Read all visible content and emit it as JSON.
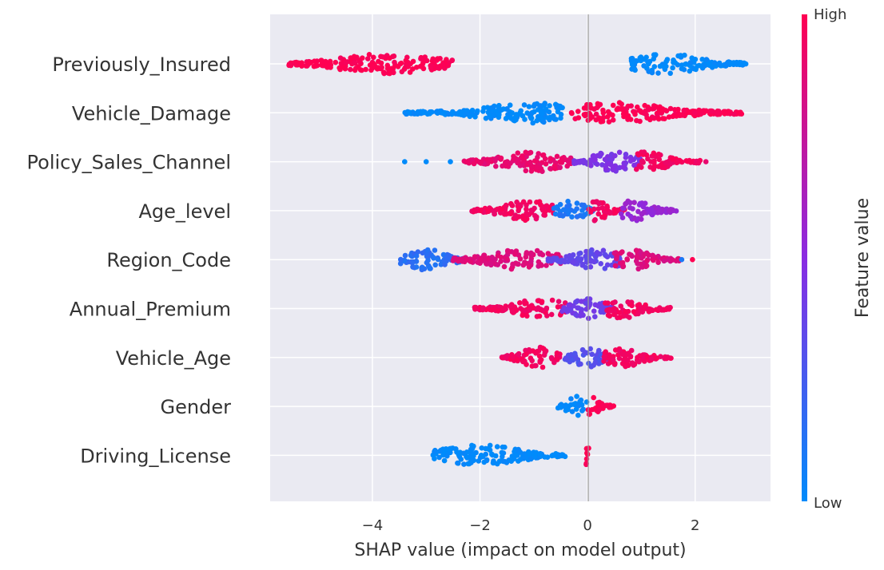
{
  "chart_data": {
    "type": "scatter",
    "subtype": "beeswarm",
    "xlabel": "SHAP value (impact on model output)",
    "xlim": [
      -5.9,
      3.4
    ],
    "xticks": [
      -4,
      -2,
      0,
      2
    ],
    "xtick_labels": [
      "−4",
      "−2",
      "0",
      "2"
    ],
    "grid": true,
    "colorbar": {
      "label": "Feature value",
      "high_label": "High",
      "low_label": "Low",
      "low_color": "#008bfb",
      "mid_color": "#8a2be2",
      "high_color": "#ff0052"
    },
    "background": "#eaeaf2",
    "features": [
      {
        "name": "Previously_Insured",
        "segments": [
          {
            "from": -5.55,
            "to": -2.5,
            "value": 1.0,
            "peak": -3.7
          },
          {
            "from": 0.8,
            "to": 2.95,
            "value": 0.0,
            "peak": 1.45
          }
        ]
      },
      {
        "name": "Vehicle_Damage",
        "segments": [
          {
            "from": -3.4,
            "to": -0.45,
            "value": 0.0,
            "peak": -1.0
          },
          {
            "from": -0.3,
            "to": 2.9,
            "value": 1.0,
            "peak": 0.55
          }
        ]
      },
      {
        "name": "Policy_Sales_Channel",
        "segments": [
          {
            "from": -2.3,
            "to": -0.3,
            "value": 0.9,
            "peak": -1.0
          },
          {
            "from": -0.3,
            "to": 1.0,
            "value": 0.45,
            "peak": 0.45
          },
          {
            "from": 0.9,
            "to": 2.1,
            "value": 0.95,
            "peak": 1.1
          }
        ],
        "outliers": [
          {
            "x": -3.4,
            "value": 0.0
          },
          {
            "x": -3.0,
            "value": 0.0
          },
          {
            "x": -2.55,
            "value": 0.0
          },
          {
            "x": 2.2,
            "value": 0.9
          }
        ]
      },
      {
        "name": "Age_level",
        "segments": [
          {
            "from": -2.15,
            "to": -0.6,
            "value": 0.95,
            "peak": -1.1
          },
          {
            "from": -0.65,
            "to": 0.1,
            "value": 0.1,
            "peak": -0.3
          },
          {
            "from": 0.0,
            "to": 0.7,
            "value": 0.95,
            "peak": 0.15
          },
          {
            "from": 0.6,
            "to": 1.65,
            "value": 0.55,
            "peak": 0.85
          }
        ]
      },
      {
        "name": "Region_Code",
        "segments": [
          {
            "from": -3.5,
            "to": -2.2,
            "value": 0.15,
            "peak": -3.0
          },
          {
            "from": -2.5,
            "to": -0.5,
            "value": 0.85,
            "peak": -1.2
          },
          {
            "from": -0.8,
            "to": 0.6,
            "value": 0.35,
            "peak": 0.2
          },
          {
            "from": 0.5,
            "to": 1.7,
            "value": 0.85,
            "peak": 0.8
          }
        ],
        "outliers": [
          {
            "x": 1.75,
            "value": 0.1
          },
          {
            "x": 1.95,
            "value": 1.0
          }
        ]
      },
      {
        "name": "Annual_Premium",
        "segments": [
          {
            "from": -2.1,
            "to": -0.4,
            "value": 0.95,
            "peak": -0.8
          },
          {
            "from": -0.5,
            "to": 0.5,
            "value": 0.4,
            "peak": 0.0
          },
          {
            "from": 0.3,
            "to": 1.55,
            "value": 0.95,
            "peak": 0.6
          }
        ]
      },
      {
        "name": "Vehicle_Age",
        "segments": [
          {
            "from": -1.6,
            "to": -0.5,
            "value": 0.95,
            "peak": -0.9
          },
          {
            "from": -0.45,
            "to": 0.45,
            "value": 0.3,
            "peak": 0.0
          },
          {
            "from": 0.3,
            "to": 1.55,
            "value": 0.95,
            "peak": 0.6
          }
        ]
      },
      {
        "name": "Gender",
        "segments": [
          {
            "from": -0.55,
            "to": 0.0,
            "value": 0.0,
            "peak": -0.2
          },
          {
            "from": 0.0,
            "to": 0.5,
            "value": 1.0,
            "peak": 0.05
          }
        ]
      },
      {
        "name": "Driving_License",
        "segments": [
          {
            "from": -2.9,
            "to": -0.4,
            "value": 0.0,
            "peak": -2.0
          },
          {
            "from": -0.03,
            "to": 0.03,
            "value": 1.0,
            "peak": 0.0
          }
        ]
      }
    ]
  }
}
